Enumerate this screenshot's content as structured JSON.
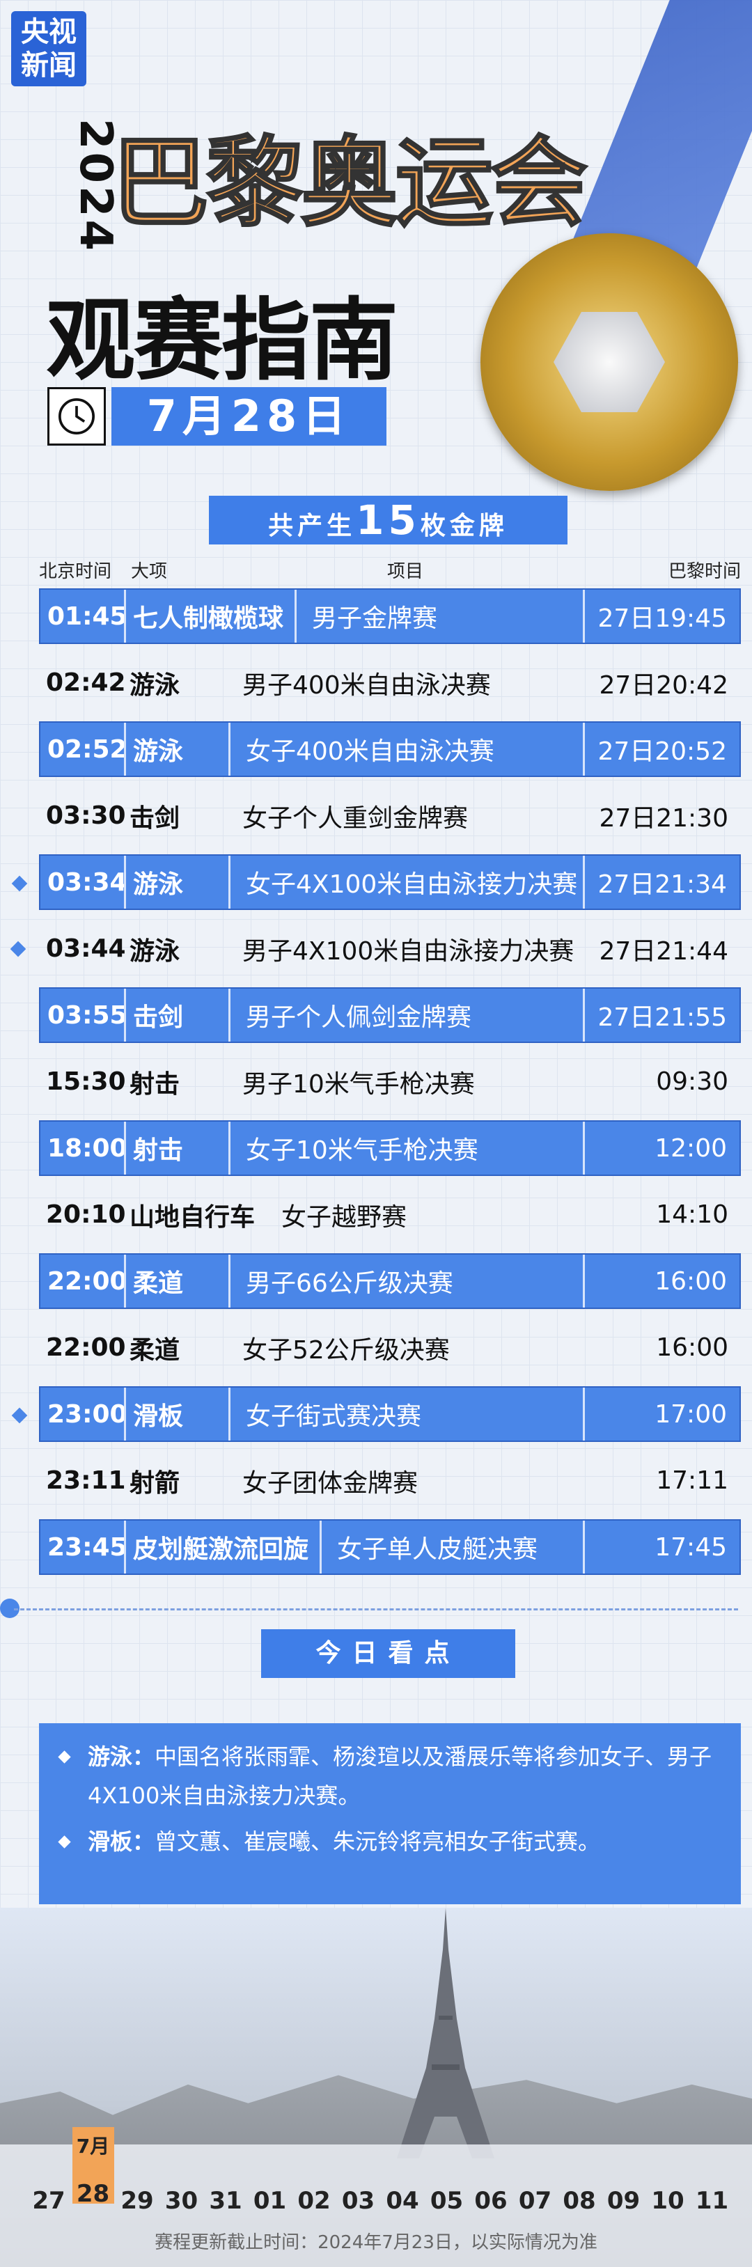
{
  "header": {
    "logo": [
      "央视",
      "新闻"
    ],
    "year": "2024",
    "title": "巴黎奥运会",
    "subtitle": "观赛指南",
    "date": "7月28日"
  },
  "medals": {
    "prefix": "共产生",
    "count": "15",
    "suffix": "枚金牌"
  },
  "table": {
    "columns": [
      "北京时间",
      "大项",
      "项目",
      "巴黎时间"
    ],
    "rows": [
      {
        "cells": [
          "01:45",
          "七人制橄榄球",
          "男子金牌赛",
          "27日19:45"
        ],
        "highlight": true,
        "marker": false
      },
      {
        "cells": [
          "02:42",
          "游泳",
          "男子400米自由泳决赛",
          "27日20:42"
        ],
        "highlight": false,
        "marker": false
      },
      {
        "cells": [
          "02:52",
          "游泳",
          "女子400米自由泳决赛",
          "27日20:52"
        ],
        "highlight": true,
        "marker": false
      },
      {
        "cells": [
          "03:30",
          "击剑",
          "女子个人重剑金牌赛",
          "27日21:30"
        ],
        "highlight": false,
        "marker": false
      },
      {
        "cells": [
          "03:34",
          "游泳",
          "女子4X100米自由泳接力决赛",
          "27日21:34"
        ],
        "highlight": true,
        "marker": true
      },
      {
        "cells": [
          "03:44",
          "游泳",
          "男子4X100米自由泳接力决赛",
          "27日21:44"
        ],
        "highlight": false,
        "marker": true
      },
      {
        "cells": [
          "03:55",
          "击剑",
          "男子个人佩剑金牌赛",
          "27日21:55"
        ],
        "highlight": true,
        "marker": false
      },
      {
        "cells": [
          "15:30",
          "射击",
          "男子10米气手枪决赛",
          "09:30"
        ],
        "highlight": false,
        "marker": false
      },
      {
        "cells": [
          "18:00",
          "射击",
          "女子10米气手枪决赛",
          "12:00"
        ],
        "highlight": true,
        "marker": false
      },
      {
        "cells": [
          "20:10",
          "山地自行车",
          "女子越野赛",
          "14:10"
        ],
        "highlight": false,
        "marker": false
      },
      {
        "cells": [
          "22:00",
          "柔道",
          "男子66公斤级决赛",
          "16:00"
        ],
        "highlight": true,
        "marker": false
      },
      {
        "cells": [
          "22:00",
          "柔道",
          "女子52公斤级决赛",
          "16:00"
        ],
        "highlight": false,
        "marker": false
      },
      {
        "cells": [
          "23:00",
          "滑板",
          "女子街式赛决赛",
          "17:00"
        ],
        "highlight": true,
        "marker": true
      },
      {
        "cells": [
          "23:11",
          "射箭",
          "女子团体金牌赛",
          "17:11"
        ],
        "highlight": false,
        "marker": false
      },
      {
        "cells": [
          "23:45",
          "皮划艇激流回旋",
          "女子单人皮艇决赛",
          "17:45"
        ],
        "highlight": true,
        "marker": false
      }
    ]
  },
  "highlights": {
    "title": "今日看点",
    "items": [
      {
        "label": "游泳：",
        "text": "中国名将张雨霏、杨浚瑄以及潘展乐等将参加女子、男子4X100米自由泳接力决赛。"
      },
      {
        "label": "滑板：",
        "text": "曾文蕙、崔宸曦、朱沅铃将亮相女子街式赛。"
      }
    ]
  },
  "calendar": {
    "month": "7月",
    "days": [
      "27",
      "28",
      "29",
      "30",
      "31",
      "01",
      "02",
      "03",
      "04",
      "05",
      "06",
      "07",
      "08",
      "09",
      "10",
      "11"
    ],
    "current": 1
  },
  "footer": "赛程更新截止时间：2024年7月23日，以实际情况为准"
}
